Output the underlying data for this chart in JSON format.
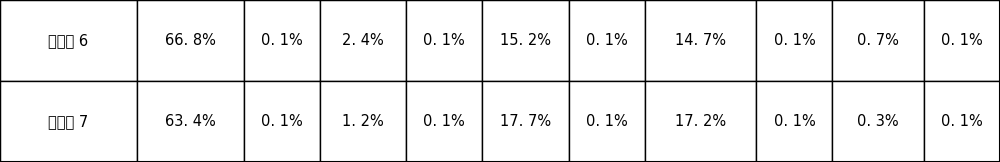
{
  "rows": [
    {
      "label": "实施例 6",
      "values": [
        "66. 8%",
        "0. 1%",
        "2. 4%",
        "0. 1%",
        "15. 2%",
        "0. 1%",
        "14. 7%",
        "0. 1%",
        "0. 7%",
        "0. 1%"
      ]
    },
    {
      "label": "实施例 7",
      "values": [
        "63. 4%",
        "0. 1%",
        "1. 2%",
        "0. 1%",
        "17. 7%",
        "0. 1%",
        "17. 2%",
        "0. 1%",
        "0. 3%",
        "0. 1%"
      ]
    }
  ],
  "background_color": "#ffffff",
  "border_color": "#000000",
  "text_color": "#000000",
  "font_size": 10.5,
  "col_widths_rel": [
    1.35,
    1.05,
    0.75,
    0.85,
    0.75,
    0.85,
    0.75,
    1.1,
    0.75,
    0.9,
    0.75
  ]
}
